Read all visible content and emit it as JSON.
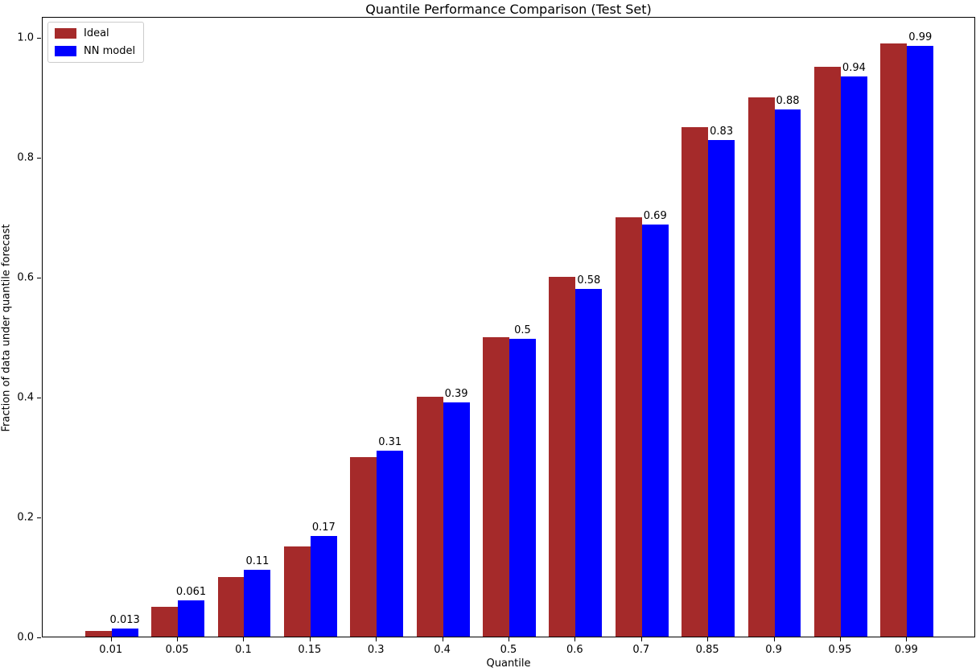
{
  "chart_data": {
    "type": "bar",
    "title": "Quantile Performance Comparison (Test Set)",
    "xlabel": "Quantile",
    "ylabel": "Fraction of data under quantile forecast",
    "categories": [
      "0.01",
      "0.05",
      "0.1",
      "0.15",
      "0.3",
      "0.4",
      "0.5",
      "0.6",
      "0.7",
      "0.85",
      "0.9",
      "0.95",
      "0.99"
    ],
    "series": [
      {
        "name": "Ideal",
        "color": "#a52a2a",
        "values": [
          0.01,
          0.05,
          0.1,
          0.15,
          0.3,
          0.4,
          0.5,
          0.6,
          0.7,
          0.85,
          0.9,
          0.95,
          0.99
        ]
      },
      {
        "name": "NN model",
        "color": "#0000ff",
        "values": [
          0.013,
          0.061,
          0.111,
          0.168,
          0.31,
          0.39,
          0.497,
          0.58,
          0.688,
          0.828,
          0.879,
          0.935,
          0.985
        ]
      }
    ],
    "bar_value_labels": [
      "0.013",
      "0.061",
      "0.11",
      "0.17",
      "0.31",
      "0.39",
      "0.5",
      "0.58",
      "0.69",
      "0.83",
      "0.88",
      "0.94",
      "0.99"
    ],
    "yticks": [
      "0.0",
      "0.2",
      "0.4",
      "0.6",
      "0.8",
      "1.0"
    ],
    "ylim": [
      0,
      1.035
    ],
    "grid": false,
    "legend_position": "upper left"
  }
}
